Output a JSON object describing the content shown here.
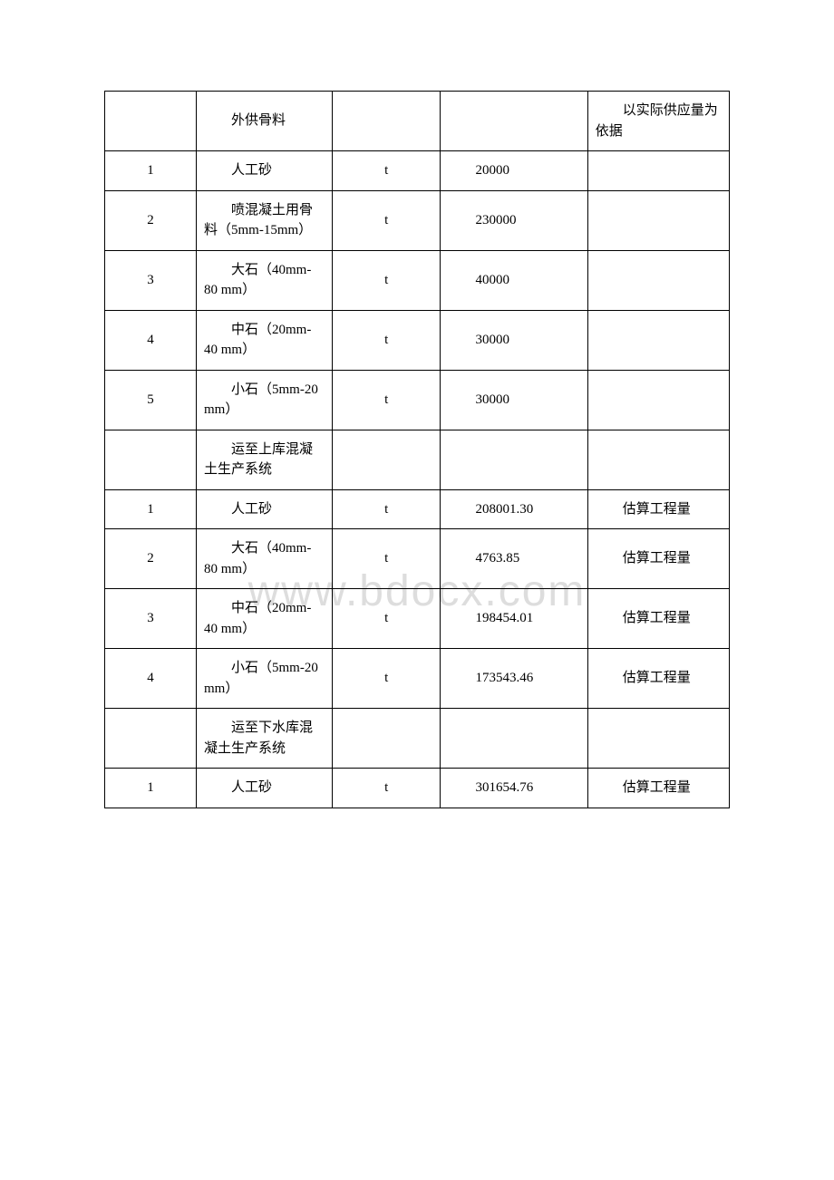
{
  "watermark": "www.bdocx.com",
  "table": {
    "columns": {
      "col1_width": "14%",
      "col2_width": "22%",
      "col3_width": "17%",
      "col4_width": "24%",
      "col5_width": "23%"
    },
    "border_color": "#000000",
    "background_color": "#ffffff",
    "font_size": 15,
    "rows": [
      {
        "c1": "",
        "c2": "外供骨料",
        "c3": "",
        "c4": "",
        "c5": "以实际供应量为依据"
      },
      {
        "c1": "1",
        "c2": "人工砂",
        "c3": "t",
        "c4": "20000",
        "c5": ""
      },
      {
        "c1": "2",
        "c2": "喷混凝土用骨料（5mm-15mm）",
        "c3": "t",
        "c4": "230000",
        "c5": ""
      },
      {
        "c1": "3",
        "c2": "大石（40mm-80 mm）",
        "c3": "t",
        "c4": "40000",
        "c5": ""
      },
      {
        "c1": "4",
        "c2": "中石（20mm-40 mm）",
        "c3": "t",
        "c4": "30000",
        "c5": ""
      },
      {
        "c1": "5",
        "c2": "小石（5mm-20 mm）",
        "c3": "t",
        "c4": "30000",
        "c5": ""
      },
      {
        "c1": "",
        "c2": "运至上库混凝土生产系统",
        "c3": "",
        "c4": "",
        "c5": ""
      },
      {
        "c1": "1",
        "c2": "人工砂",
        "c3": "t",
        "c4": "208001.30",
        "c5": "估算工程量"
      },
      {
        "c1": "2",
        "c2": "大石（40mm-80 mm）",
        "c3": "t",
        "c4": "4763.85",
        "c5": "估算工程量"
      },
      {
        "c1": "3",
        "c2": "中石（20mm-40 mm）",
        "c3": "t",
        "c4": "198454.01",
        "c5": "估算工程量"
      },
      {
        "c1": "4",
        "c2": "小石（5mm-20 mm）",
        "c3": "t",
        "c4": "173543.46",
        "c5": "估算工程量"
      },
      {
        "c1": "",
        "c2": "运至下水库混凝土生产系统",
        "c3": "",
        "c4": "",
        "c5": ""
      },
      {
        "c1": "1",
        "c2": "人工砂",
        "c3": "t",
        "c4": "301654.76",
        "c5": "估算工程量"
      }
    ]
  }
}
